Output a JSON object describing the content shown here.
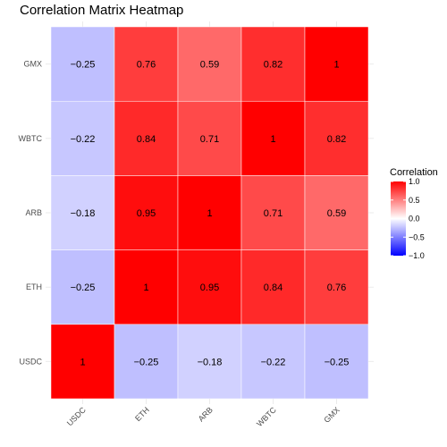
{
  "chart_data": {
    "type": "heatmap",
    "title": "Correlation Matrix Heatmap",
    "xlabel": "",
    "ylabel": "",
    "x_categories": [
      "USDC",
      "ETH",
      "ARB",
      "WBTC",
      "GMX"
    ],
    "y_categories": [
      "USDC",
      "ETH",
      "ARB",
      "WBTC",
      "GMX"
    ],
    "values": [
      [
        1,
        -0.25,
        -0.18,
        -0.22,
        -0.25
      ],
      [
        -0.25,
        1,
        0.95,
        0.84,
        0.76
      ],
      [
        -0.18,
        0.95,
        1,
        0.71,
        0.59
      ],
      [
        -0.22,
        0.84,
        0.71,
        1,
        0.82
      ],
      [
        -0.25,
        0.76,
        0.59,
        0.82,
        1
      ]
    ],
    "value_labels": [
      [
        "1",
        "−0.25",
        "−0.18",
        "−0.22",
        "−0.25"
      ],
      [
        "−0.25",
        "1",
        "0.95",
        "0.84",
        "0.76"
      ],
      [
        "−0.18",
        "0.95",
        "1",
        "0.71",
        "0.59"
      ],
      [
        "−0.22",
        "0.84",
        "0.71",
        "1",
        "0.82"
      ],
      [
        "−0.25",
        "0.76",
        "0.59",
        "0.82",
        "1"
      ]
    ],
    "color_scale": {
      "low": "#0000FF",
      "mid": "#FFFFFF",
      "high": "#FF0000",
      "domain": [
        -1,
        1
      ]
    },
    "legend": {
      "title": "Correlation",
      "placement": "right",
      "ticks": [
        1,
        0.5,
        0,
        -0.5,
        -1
      ],
      "tick_labels": [
        "1.0",
        "0.5",
        "0.0",
        "−0.5",
        "−1.0"
      ]
    },
    "grid": true
  }
}
